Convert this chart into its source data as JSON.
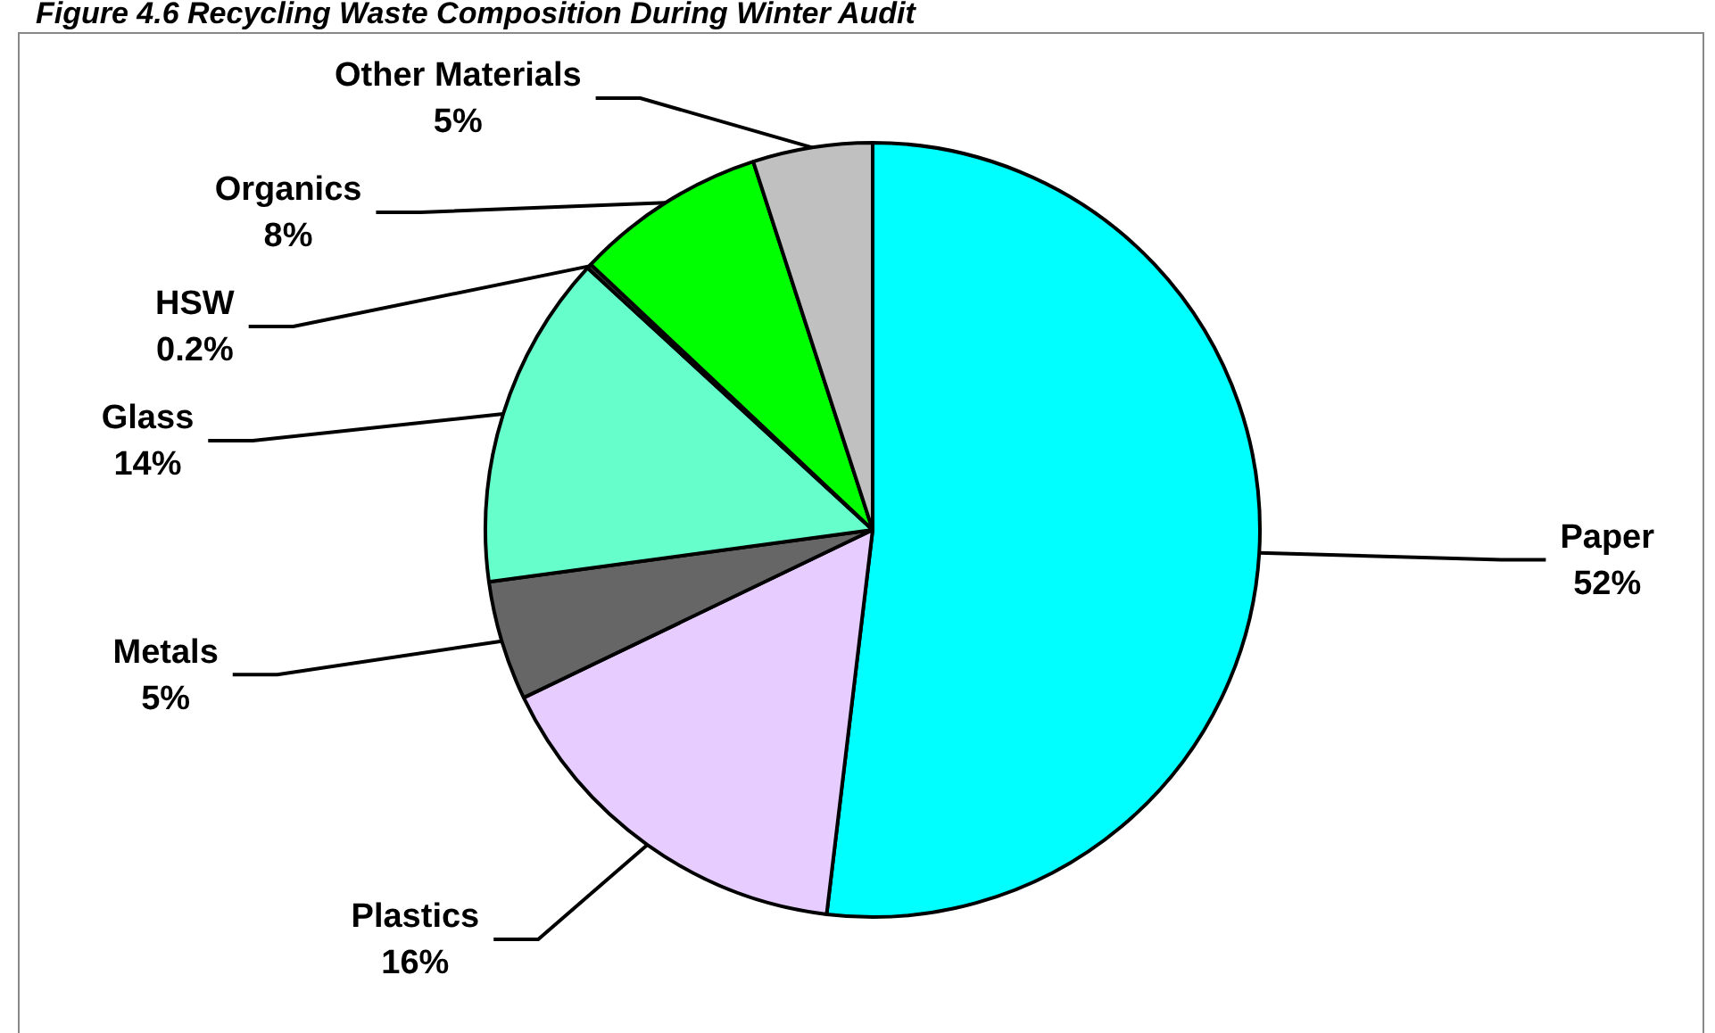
{
  "chart_data": {
    "type": "pie",
    "title": "Figure 4.6 Recycling Waste Composition During Winter Audit",
    "categories": [
      "Paper",
      "Plastics",
      "Metals",
      "Glass",
      "HSW",
      "Organics",
      "Other Materials"
    ],
    "values": [
      52,
      16,
      5,
      14,
      0.2,
      8,
      5
    ],
    "value_labels": [
      "52%",
      "16%",
      "5%",
      "14%",
      "0.2%",
      "8%",
      "5%"
    ],
    "colors": [
      "#00ffff",
      "#e6ccff",
      "#666666",
      "#66ffcc",
      "#333333",
      "#00ff00",
      "#c0c0c0"
    ],
    "legend": false
  }
}
